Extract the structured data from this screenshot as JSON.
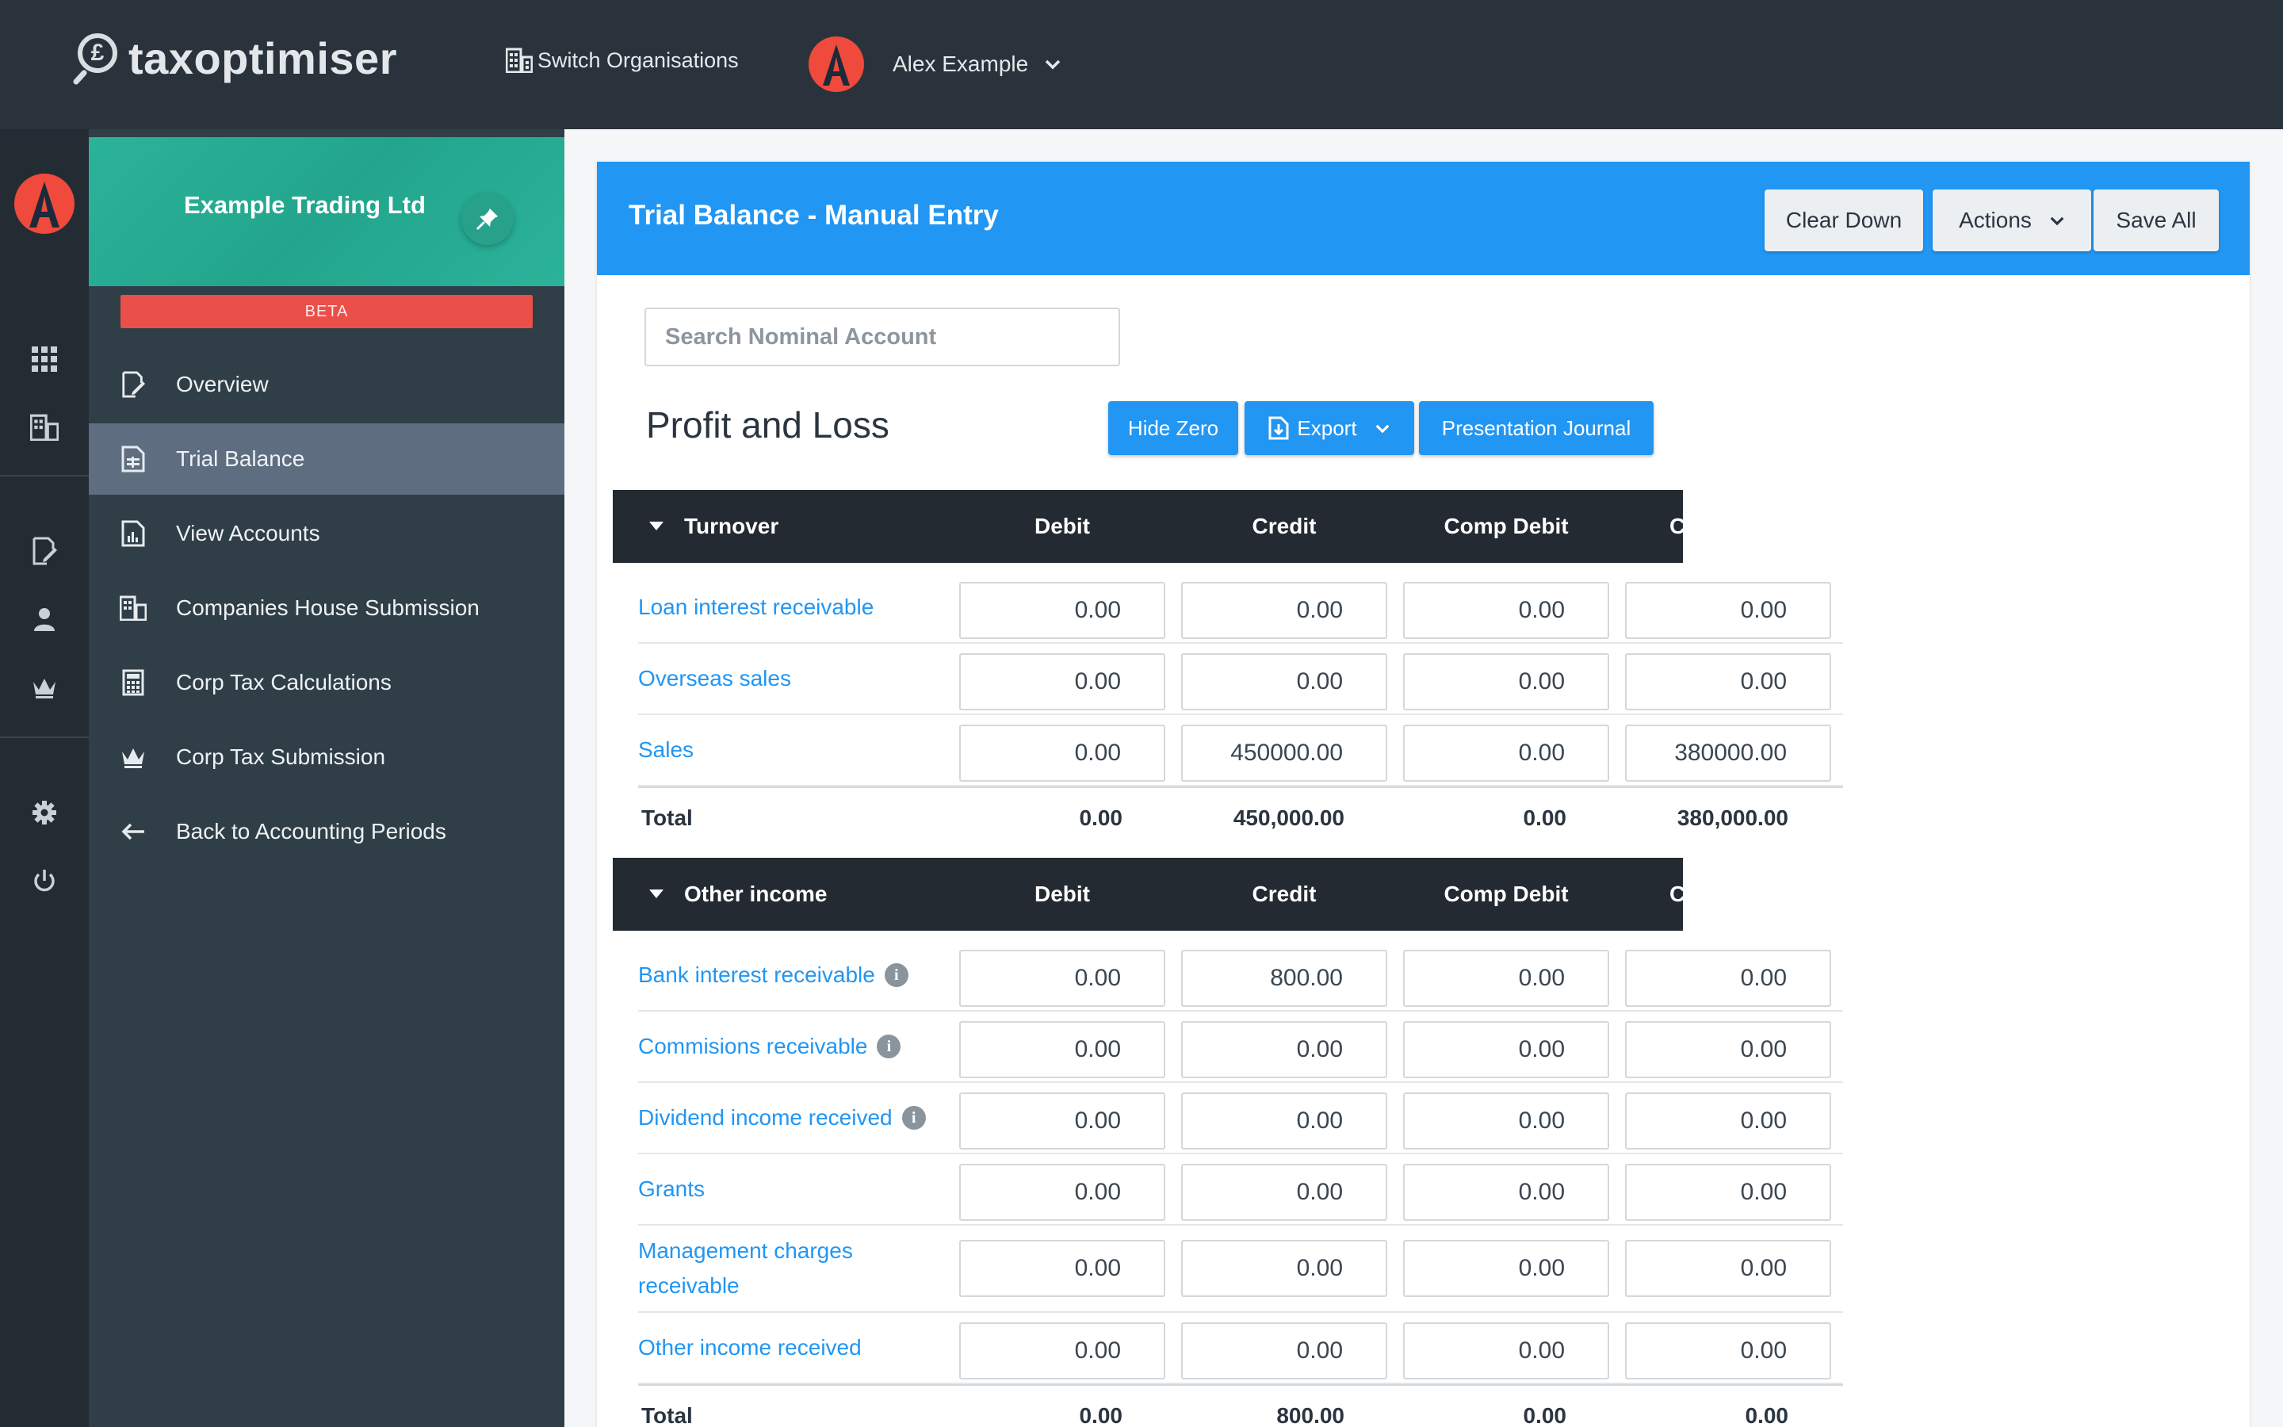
{
  "topbar": {
    "logo_text": "taxoptimiser",
    "switch_org_label": "Switch Organisations",
    "user_name": "Alex Example"
  },
  "sidebar": {
    "org_name": "Example Trading Ltd",
    "beta_label": "BETA",
    "items": [
      {
        "label": "Overview",
        "icon": "edit-doc-icon"
      },
      {
        "label": "Trial Balance",
        "icon": "spreadsheet-icon",
        "active": true
      },
      {
        "label": "View Accounts",
        "icon": "chart-doc-icon"
      },
      {
        "label": "Companies House Submission",
        "icon": "building-icon"
      },
      {
        "label": "Corp Tax Calculations",
        "icon": "calculator-icon"
      },
      {
        "label": "Corp Tax Submission",
        "icon": "crown-icon"
      },
      {
        "label": "Back to Accounting Periods",
        "icon": "arrow-left-icon"
      }
    ]
  },
  "rail": {
    "icons": [
      "grid-icon",
      "building-icon",
      "edit-doc-icon",
      "user-icon",
      "crown-icon",
      "gear-icon",
      "power-icon"
    ]
  },
  "panel": {
    "title": "Trial Balance - Manual Entry",
    "buttons": {
      "clear_down": "Clear Down",
      "actions": "Actions",
      "save_all": "Save All"
    },
    "search_placeholder": "Search Nominal Account",
    "section_title": "Profit and Loss",
    "toolbar": {
      "hide_zero": "Hide Zero",
      "export": "Export",
      "presentation_journal": "Presentation Journal"
    },
    "columns": {
      "debit": "Debit",
      "credit": "Credit",
      "comp_debit": "Comp Debit",
      "comp_credit_clipped": "C"
    },
    "total_label": "Total",
    "groups": [
      {
        "name": "Turnover",
        "rows": [
          {
            "account": "Loan interest receivable",
            "info": false,
            "debit": "0.00",
            "credit": "0.00",
            "comp_debit": "0.00",
            "comp_credit": "0.00"
          },
          {
            "account": "Overseas sales",
            "info": false,
            "debit": "0.00",
            "credit": "0.00",
            "comp_debit": "0.00",
            "comp_credit": "0.00"
          },
          {
            "account": "Sales",
            "info": false,
            "debit": "0.00",
            "credit": "450000.00",
            "comp_debit": "0.00",
            "comp_credit": "380000.00"
          }
        ],
        "totals": {
          "debit": "0.00",
          "credit": "450,000.00",
          "comp_debit": "0.00",
          "comp_credit": "380,000.00"
        }
      },
      {
        "name": "Other income",
        "rows": [
          {
            "account": "Bank interest receivable",
            "info": true,
            "debit": "0.00",
            "credit": "800.00",
            "comp_debit": "0.00",
            "comp_credit": "0.00"
          },
          {
            "account": "Commisions receivable",
            "info": true,
            "debit": "0.00",
            "credit": "0.00",
            "comp_debit": "0.00",
            "comp_credit": "0.00"
          },
          {
            "account": "Dividend income received",
            "info": true,
            "debit": "0.00",
            "credit": "0.00",
            "comp_debit": "0.00",
            "comp_credit": "0.00"
          },
          {
            "account": "Grants",
            "info": false,
            "debit": "0.00",
            "credit": "0.00",
            "comp_debit": "0.00",
            "comp_credit": "0.00"
          },
          {
            "account": "Management charges receivable",
            "info": false,
            "debit": "0.00",
            "credit": "0.00",
            "comp_debit": "0.00",
            "comp_credit": "0.00"
          },
          {
            "account": "Other income received",
            "info": false,
            "debit": "0.00",
            "credit": "0.00",
            "comp_debit": "0.00",
            "comp_credit": "0.00"
          }
        ],
        "totals": {
          "debit": "0.00",
          "credit": "800.00",
          "comp_debit": "0.00",
          "comp_credit": "0.00"
        }
      }
    ]
  },
  "colors": {
    "topbar_bg": "#2a333c",
    "sidebar_bg": "#2f3e47",
    "org_header_bg": "#2bb39a",
    "beta_bg": "#ea4f4a",
    "accent_blue": "#2196f3",
    "table_header_bg": "#232a31",
    "avatar_red": "#ef4a3c"
  }
}
